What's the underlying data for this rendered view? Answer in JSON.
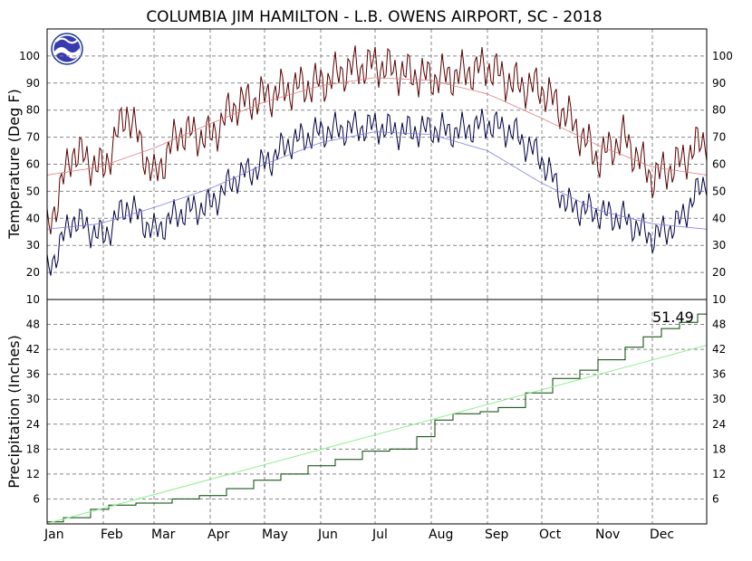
{
  "chart_data": [
    {
      "type": "line",
      "title": "COLUMBIA JIM HAMILTON - L.B. OWENS AIRPORT, SC - 2018",
      "ylabel": "Temperature (Deg F)",
      "ylim": [
        10,
        110
      ],
      "yticks": [
        10,
        20,
        30,
        40,
        50,
        60,
        70,
        80,
        90,
        100
      ],
      "months": [
        "Jan",
        "Feb",
        "Mar",
        "Apr",
        "May",
        "Jun",
        "Jul",
        "Aug",
        "Sep",
        "Oct",
        "Nov",
        "Dec"
      ],
      "grid": true,
      "series": [
        {
          "role": "observed-high",
          "color": "#5a0000",
          "x": [
            1,
            15,
            32,
            45,
            60,
            74,
            91,
            105,
            121,
            135,
            152,
            166,
            182,
            196,
            213,
            227,
            244,
            258,
            274,
            288,
            305,
            319,
            335,
            349,
            365
          ],
          "values": [
            35,
            65,
            58,
            80,
            55,
            72,
            70,
            82,
            85,
            88,
            90,
            95,
            97,
            94,
            92,
            93,
            96,
            90,
            88,
            78,
            62,
            70,
            55,
            60,
            70
          ]
        },
        {
          "role": "observed-low",
          "color": "#000044",
          "x": [
            1,
            15,
            32,
            45,
            60,
            74,
            91,
            105,
            121,
            135,
            152,
            166,
            182,
            196,
            213,
            227,
            244,
            258,
            274,
            288,
            305,
            319,
            335,
            349,
            365
          ],
          "values": [
            20,
            40,
            33,
            45,
            35,
            42,
            45,
            55,
            60,
            68,
            72,
            73,
            74,
            72,
            73,
            72,
            75,
            72,
            62,
            45,
            42,
            40,
            33,
            38,
            55
          ]
        },
        {
          "role": "normal-high",
          "color": "#e08080",
          "x": [
            1,
            30,
            60,
            91,
            121,
            152,
            182,
            213,
            244,
            274,
            305,
            335,
            365
          ],
          "values": [
            56,
            59,
            66,
            75,
            83,
            89,
            92,
            91,
            86,
            77,
            67,
            59,
            56
          ]
        },
        {
          "role": "normal-low",
          "color": "#8080e0",
          "x": [
            1,
            30,
            60,
            91,
            121,
            152,
            182,
            213,
            244,
            274,
            305,
            335,
            365
          ],
          "values": [
            36,
            38,
            44,
            51,
            60,
            68,
            72,
            71,
            65,
            53,
            43,
            38,
            36
          ]
        }
      ]
    },
    {
      "type": "line",
      "ylabel": "Precipitation (Inches)",
      "ylim": [
        0,
        54
      ],
      "yticks": [
        6,
        12,
        18,
        24,
        30,
        36,
        42,
        48
      ],
      "annotation": "51.49",
      "grid": true,
      "series": [
        {
          "role": "observed-cumulative",
          "color": "#004400",
          "x": [
            1,
            10,
            25,
            35,
            50,
            70,
            85,
            100,
            115,
            130,
            145,
            160,
            175,
            190,
            205,
            215,
            225,
            240,
            250,
            265,
            280,
            295,
            305,
            320,
            330,
            340,
            350,
            360,
            365
          ],
          "values": [
            0.5,
            1.5,
            3.5,
            4.5,
            5.0,
            6.0,
            6.8,
            8.5,
            10.5,
            12.0,
            14.0,
            15.5,
            17.5,
            18.0,
            21.0,
            25.0,
            26.5,
            27.0,
            28.0,
            31.5,
            35.0,
            37.0,
            39.5,
            42.5,
            45.0,
            47.0,
            48.5,
            50.5,
            51.49
          ]
        },
        {
          "role": "normal-cumulative",
          "color": "#90ee90",
          "x": [
            1,
            365
          ],
          "values": [
            0.1,
            43.0
          ]
        }
      ]
    }
  ]
}
